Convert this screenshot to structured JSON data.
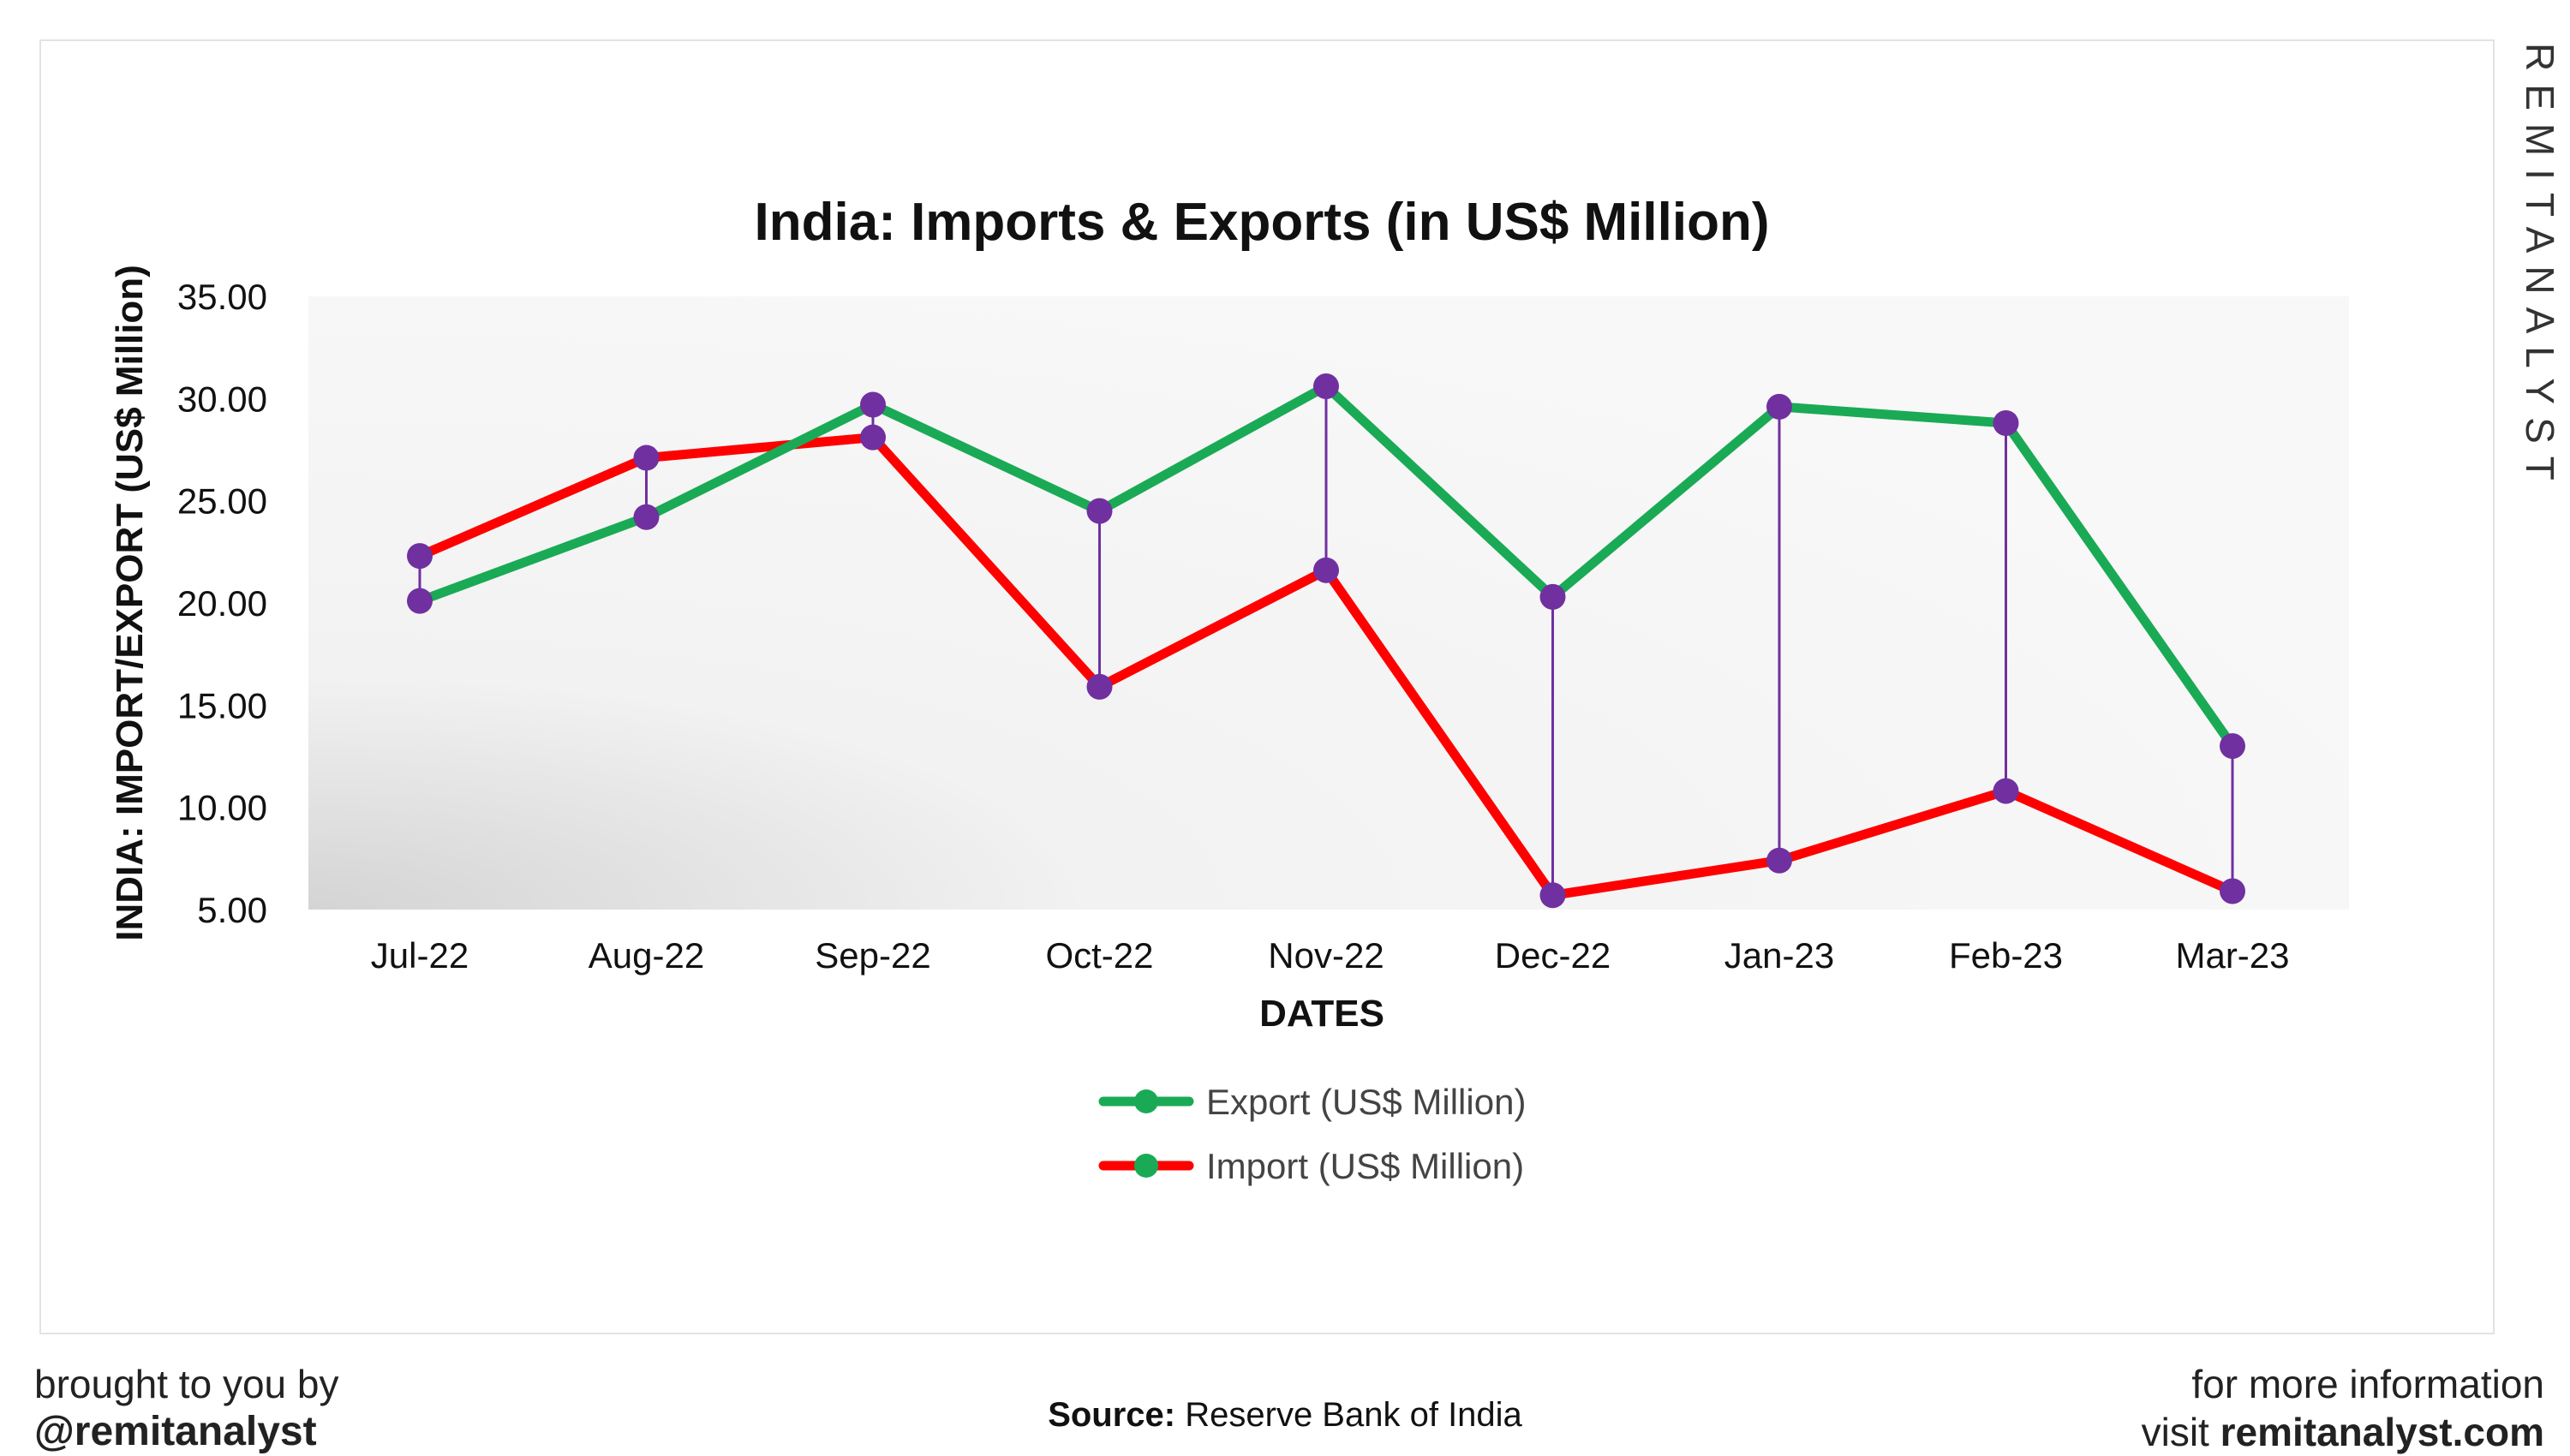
{
  "brand_vertical": "REMITANALYST",
  "footer": {
    "left_line1": "brought to you by",
    "left_line2": "@remitanalyst",
    "source_label": "Source:",
    "source_value": "Reserve Bank of India",
    "right_line1": "for more information",
    "right_visit": "visit",
    "right_site": "remitanalyst.com"
  },
  "colors": {
    "export": "#1aaa55",
    "import": "#ff0000",
    "marker": "#7030a0",
    "connector": "#7030a0"
  },
  "chart_data": {
    "type": "line",
    "title": "India: Imports & Exports (in US$ Million)",
    "xlabel": "DATES",
    "ylabel": "INDIA: IMPORT/EXPORT (US$ Million)",
    "categories": [
      "Jul-22",
      "Aug-22",
      "Sep-22",
      "Oct-22",
      "Nov-22",
      "Dec-22",
      "Jan-23",
      "Feb-23",
      "Mar-23"
    ],
    "yticks": [
      "5.00",
      "10.00",
      "15.00",
      "20.00",
      "25.00",
      "30.00",
      "35.00"
    ],
    "ylim": [
      5,
      35
    ],
    "grid": false,
    "legend_position": "bottom",
    "series": [
      {
        "name": "Export (US$ Million)",
        "color": "#1aaa55",
        "values": [
          20.1,
          24.2,
          29.7,
          24.5,
          30.6,
          20.3,
          29.6,
          28.8,
          13.0
        ]
      },
      {
        "name": "Import (US$ Million)",
        "color": "#ff0000",
        "values": [
          22.3,
          27.1,
          28.1,
          15.9,
          21.6,
          5.7,
          7.4,
          10.8,
          5.9
        ]
      }
    ]
  }
}
